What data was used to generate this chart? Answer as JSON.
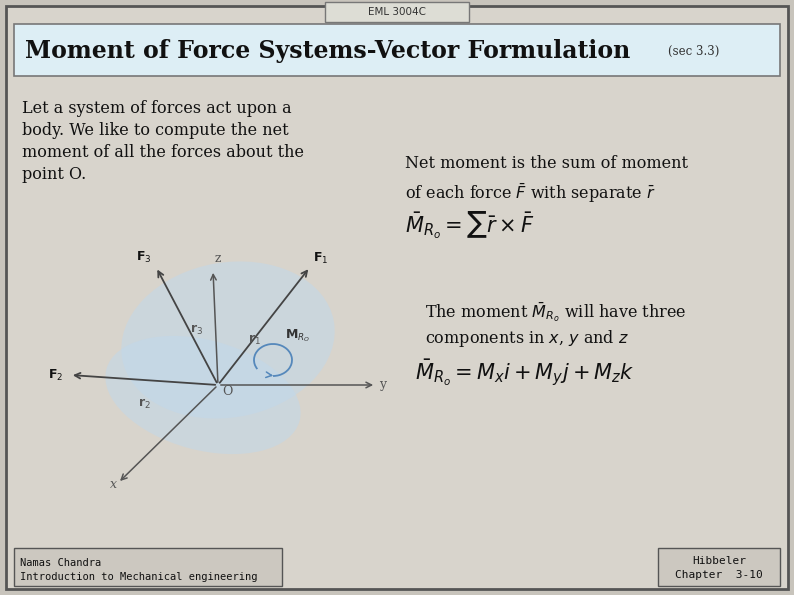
{
  "bg_color": "#c8c4bc",
  "slide_bg": "#d8d4cc",
  "title_tab_text": "EML 3004C",
  "title_text": "Moment of Force Systems-Vector Formulation",
  "title_sec": "(sec 3.3)",
  "title_box_bg": "#ddeef5",
  "body_text_lines": [
    "Let a system of forces act upon a",
    "body. We like to compute the net",
    "moment of all the forces about the",
    "point O."
  ],
  "bottom_left1": "Namas Chandra",
  "bottom_left2": "Introduction to Mechanical engineering",
  "bottom_right1": "Hibbeler",
  "bottom_right2": "Chapter  3-10",
  "diagram_blob_color": "#c0d8ec",
  "diagram_blob_alpha": 0.5,
  "arrow_color": "#444444",
  "axis_color": "#555555"
}
